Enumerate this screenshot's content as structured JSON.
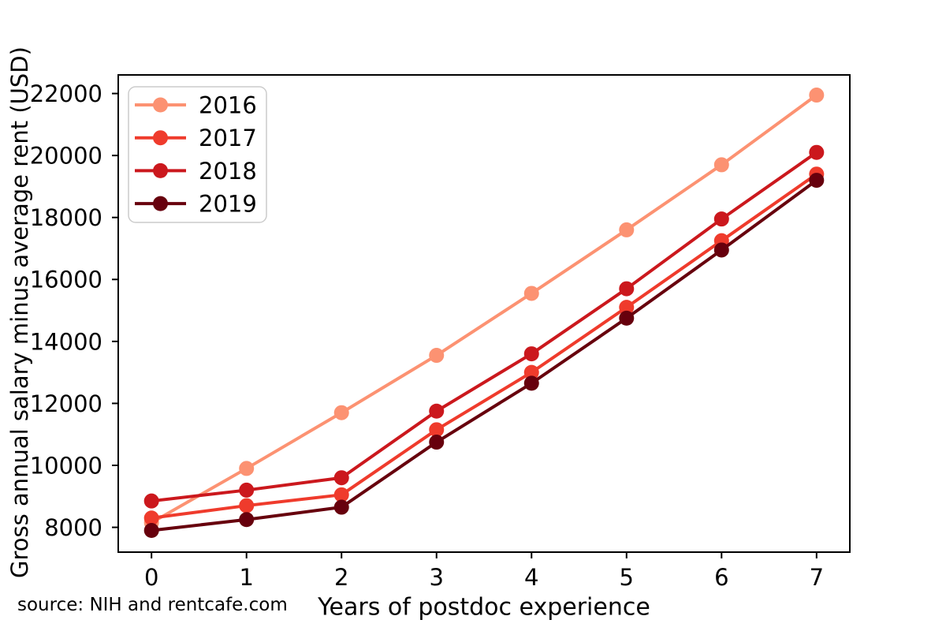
{
  "figure": {
    "source_note": "source: NIH and rentcafe.com"
  },
  "chart_data": {
    "type": "line",
    "title": "",
    "xlabel": "Years of postdoc experience",
    "ylabel": "Gross annual salary minus average rent (USD)",
    "x": [
      0,
      1,
      2,
      3,
      4,
      5,
      6,
      7
    ],
    "xticks": [
      "0",
      "1",
      "2",
      "3",
      "4",
      "5",
      "6",
      "7"
    ],
    "yticks": [
      "8000",
      "10000",
      "12000",
      "14000",
      "16000",
      "18000",
      "20000",
      "22000"
    ],
    "ytick_values": [
      8000,
      10000,
      12000,
      14000,
      16000,
      18000,
      20000,
      22000
    ],
    "xlim": [
      -0.35,
      7.35
    ],
    "ylim": [
      7200,
      22600
    ],
    "grid": false,
    "legend_position": "upper left",
    "marker": "circle",
    "series": [
      {
        "name": "2016",
        "color": "#fc9272",
        "values": [
          8150,
          9900,
          11700,
          13550,
          15550,
          17600,
          19700,
          21950
        ]
      },
      {
        "name": "2017",
        "color": "#ef3b2c",
        "values": [
          8300,
          8700,
          9050,
          11150,
          13000,
          15100,
          17250,
          19400
        ]
      },
      {
        "name": "2018",
        "color": "#cb181d",
        "values": [
          8850,
          9200,
          9600,
          11750,
          13600,
          15700,
          17950,
          20100
        ]
      },
      {
        "name": "2019",
        "color": "#67000d",
        "values": [
          7900,
          8250,
          8650,
          10750,
          12650,
          14750,
          16950,
          19200
        ]
      }
    ]
  }
}
